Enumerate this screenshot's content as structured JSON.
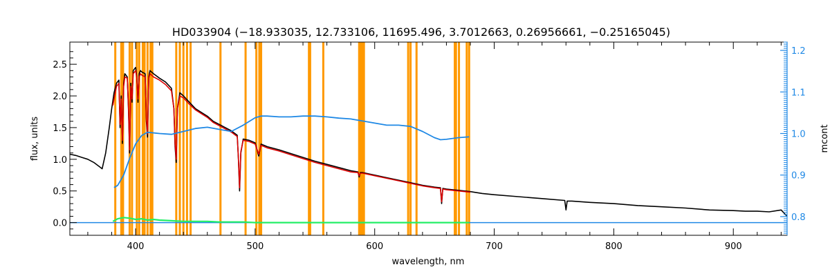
{
  "chart_data": {
    "type": "line",
    "title": "HD033904    (−18.933035, 12.733106, 11695.496, 3.7012663, 0.26956661, −0.25165045)",
    "xlabel": "wavelength, nm",
    "ylabel": "flux, units",
    "y2label": "mcont",
    "xlim": [
      345,
      945
    ],
    "ylim": [
      -0.2,
      2.85
    ],
    "y2lim": [
      0.755,
      1.22
    ],
    "grid": false,
    "x_ticks": [
      400,
      500,
      600,
      700,
      800,
      900
    ],
    "x_tick_labels": [
      "400",
      "500",
      "600",
      "700",
      "800",
      "900"
    ],
    "y_ticks": [
      0.0,
      0.5,
      1.0,
      1.5,
      2.0,
      2.5
    ],
    "y_tick_labels": [
      "0.0",
      "0.5",
      "1.0",
      "1.5",
      "2.0",
      "2.5"
    ],
    "y2_ticks": [
      0.8,
      0.9,
      1.0,
      1.1,
      1.2
    ],
    "y2_tick_labels": [
      "0.8",
      "0.9",
      "1.0",
      "1.1",
      "1.2"
    ],
    "colors": {
      "observed": "#000000",
      "model": "#dd0000",
      "mcont": "#1e88e5",
      "residual": "#22ee66",
      "mask": "#ff9900",
      "right_axis": "#1e88e5"
    },
    "mask_lines": [
      383,
      388,
      389.5,
      395,
      397,
      401,
      403,
      406,
      407.5,
      410,
      412.5,
      414,
      434,
      437,
      440,
      443,
      446,
      471,
      492,
      501,
      503.5,
      505,
      545,
      546,
      557,
      587,
      588.5,
      590,
      591,
      628,
      630,
      635,
      667,
      668,
      670.5,
      677,
      679
    ],
    "series": [
      {
        "kind": "observed",
        "x": [
          345,
          350,
          355,
          360,
          365,
          370,
          372,
          375,
          378,
          380,
          382,
          384,
          386,
          387,
          388,
          389,
          390,
          391,
          393,
          394,
          395,
          396,
          397,
          398,
          400,
          401,
          402,
          403,
          404,
          405,
          408,
          409,
          410,
          411,
          412,
          415,
          420,
          425,
          430,
          432,
          433,
          434,
          435,
          437,
          440,
          445,
          450,
          455,
          460,
          465,
          470,
          475,
          480,
          485,
          486,
          487,
          488,
          490,
          495,
          500,
          503,
          505,
          510,
          520,
          530,
          540,
          550,
          560,
          570,
          580,
          586,
          587,
          588,
          590,
          600,
          610,
          620,
          630,
          640,
          650,
          655,
          656,
          657,
          660,
          670,
          680,
          690,
          700,
          720,
          740,
          759,
          760,
          761,
          765,
          780,
          800,
          820,
          840,
          860,
          880,
          900,
          910,
          920,
          930,
          940,
          945
        ],
        "y": [
          1.08,
          1.06,
          1.03,
          1.0,
          0.95,
          0.88,
          0.85,
          1.1,
          1.5,
          1.8,
          2.05,
          2.2,
          2.25,
          1.5,
          2.0,
          1.25,
          2.2,
          2.35,
          2.3,
          1.8,
          1.1,
          2.2,
          1.9,
          2.4,
          2.45,
          2.3,
          1.9,
          2.35,
          2.4,
          2.38,
          2.35,
          1.6,
          1.35,
          2.3,
          2.4,
          2.35,
          2.28,
          2.22,
          2.12,
          1.8,
          1.2,
          0.95,
          1.8,
          2.05,
          2.0,
          1.9,
          1.8,
          1.74,
          1.68,
          1.6,
          1.55,
          1.5,
          1.45,
          1.38,
          1.0,
          0.5,
          1.1,
          1.32,
          1.3,
          1.26,
          1.05,
          1.24,
          1.2,
          1.15,
          1.09,
          1.03,
          0.97,
          0.92,
          0.87,
          0.82,
          0.8,
          0.72,
          0.79,
          0.79,
          0.75,
          0.71,
          0.67,
          0.63,
          0.59,
          0.56,
          0.55,
          0.3,
          0.54,
          0.53,
          0.51,
          0.49,
          0.46,
          0.44,
          0.41,
          0.38,
          0.35,
          0.2,
          0.34,
          0.34,
          0.32,
          0.3,
          0.27,
          0.25,
          0.23,
          0.2,
          0.19,
          0.18,
          0.18,
          0.17,
          0.2,
          0.1
        ]
      },
      {
        "kind": "model",
        "x": [
          381,
          384,
          386,
          387,
          388,
          389,
          390,
          391,
          393,
          394,
          395,
          396,
          397,
          398,
          400,
          401,
          402,
          403,
          404,
          405,
          408,
          409,
          410,
          411,
          412,
          415,
          420,
          425,
          430,
          432,
          433,
          434,
          435,
          437,
          440,
          445,
          450,
          455,
          460,
          465,
          470,
          475,
          480,
          485,
          486,
          487,
          488,
          490,
          495,
          500,
          503,
          505,
          510,
          520,
          530,
          540,
          550,
          560,
          570,
          580,
          586,
          587,
          588,
          590,
          600,
          610,
          620,
          630,
          640,
          650,
          655,
          656,
          657,
          660,
          670,
          680
        ],
        "y": [
          1.85,
          2.15,
          2.2,
          1.55,
          1.95,
          1.3,
          2.15,
          2.3,
          2.28,
          1.85,
          1.15,
          2.15,
          1.95,
          2.35,
          2.4,
          2.28,
          1.95,
          2.3,
          2.35,
          2.33,
          2.3,
          1.65,
          1.4,
          2.28,
          2.35,
          2.3,
          2.25,
          2.18,
          2.08,
          1.8,
          1.25,
          1.0,
          1.8,
          2.0,
          1.97,
          1.87,
          1.78,
          1.72,
          1.66,
          1.58,
          1.53,
          1.48,
          1.43,
          1.36,
          1.02,
          0.55,
          1.12,
          1.3,
          1.28,
          1.24,
          1.08,
          1.22,
          1.18,
          1.13,
          1.07,
          1.01,
          0.95,
          0.9,
          0.85,
          0.8,
          0.79,
          0.74,
          0.78,
          0.78,
          0.74,
          0.7,
          0.66,
          0.62,
          0.58,
          0.55,
          0.54,
          0.33,
          0.53,
          0.52,
          0.5,
          0.48
        ]
      },
      {
        "kind": "mcont",
        "axis": "right",
        "x": [
          382,
          385,
          390,
          395,
          400,
          405,
          410,
          420,
          430,
          440,
          450,
          460,
          470,
          480,
          490,
          500,
          505,
          510,
          520,
          530,
          540,
          550,
          560,
          570,
          580,
          590,
          600,
          610,
          620,
          630,
          640,
          650,
          655,
          660,
          670,
          679
        ],
        "y": [
          0.87,
          0.875,
          0.9,
          0.94,
          0.975,
          0.995,
          1.003,
          1.0,
          0.998,
          1.005,
          1.012,
          1.015,
          1.01,
          1.005,
          1.02,
          1.038,
          1.042,
          1.042,
          1.04,
          1.04,
          1.042,
          1.042,
          1.04,
          1.037,
          1.035,
          1.03,
          1.025,
          1.02,
          1.02,
          1.017,
          1.005,
          0.99,
          0.985,
          0.986,
          0.99,
          0.992
        ]
      },
      {
        "kind": "residual",
        "x": [
          381,
          385,
          390,
          395,
          400,
          405,
          410,
          415,
          420,
          430,
          440,
          450,
          460,
          470,
          480,
          490,
          500,
          520,
          540,
          560,
          580,
          600,
          620,
          640,
          660,
          679
        ],
        "y": [
          0.02,
          0.06,
          0.08,
          0.07,
          0.05,
          0.06,
          0.04,
          0.05,
          0.04,
          0.03,
          0.02,
          0.02,
          0.02,
          0.01,
          0.01,
          0.01,
          0.0,
          0.0,
          0.0,
          0.0,
          0.0,
          0.0,
          0.0,
          0.0,
          0.0,
          0.0
        ]
      },
      {
        "kind": "zero",
        "x": [
          345,
          945
        ],
        "y": [
          0.0,
          0.0
        ]
      }
    ]
  }
}
